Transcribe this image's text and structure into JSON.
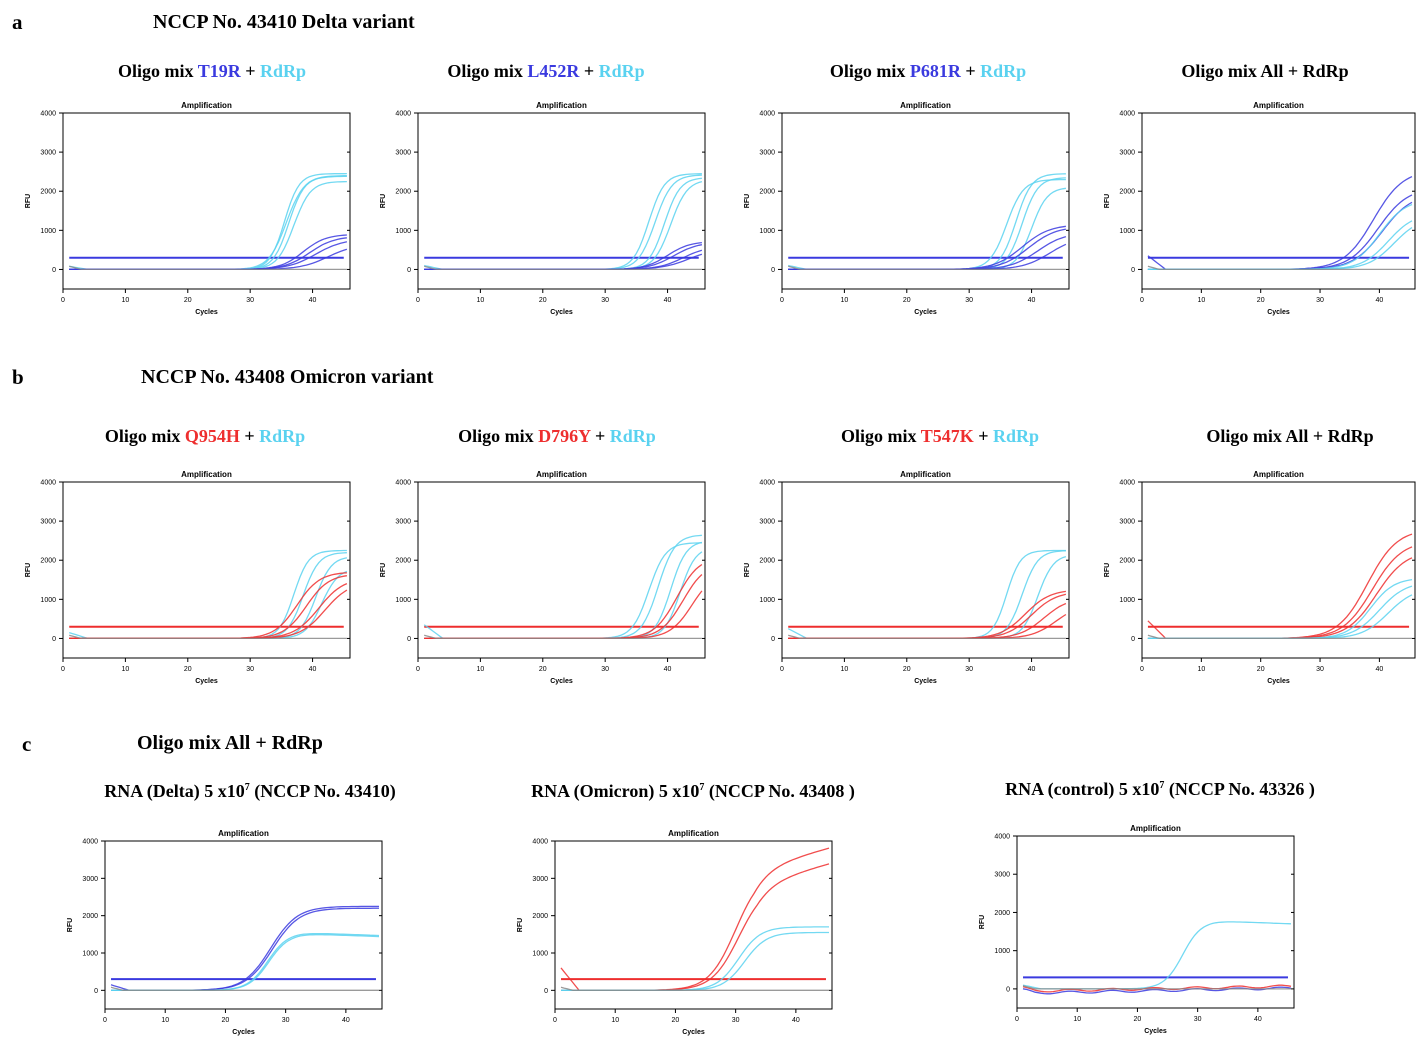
{
  "colors": {
    "cyan": "#5ad2f0",
    "blue": "#3a3adf",
    "red": "#ee2e2e",
    "gray": "#888888",
    "black": "#000000"
  },
  "panels": {
    "a": {
      "letter": "a",
      "title": "NCCP No. 43410 Delta variant"
    },
    "b": {
      "letter": "b",
      "title": "NCCP No. 43408 Omicron variant"
    },
    "c": {
      "letter": "c",
      "title": "Oligo mix All + RdRp"
    }
  },
  "chart_titles": [
    [
      {
        "t": "Oligo mix ",
        "c": "black"
      },
      {
        "t": "T19R",
        "c": "blue"
      },
      {
        "t": " + ",
        "c": "black"
      },
      {
        "t": "RdRp",
        "c": "cyan"
      }
    ],
    [
      {
        "t": "Oligo mix ",
        "c": "black"
      },
      {
        "t": "L452R",
        "c": "blue"
      },
      {
        "t": " + ",
        "c": "black"
      },
      {
        "t": "RdRp",
        "c": "cyan"
      }
    ],
    [
      {
        "t": "Oligo mix ",
        "c": "black"
      },
      {
        "t": "P681R",
        "c": "blue"
      },
      {
        "t": " + ",
        "c": "black"
      },
      {
        "t": "RdRp",
        "c": "cyan"
      }
    ],
    [
      {
        "t": "Oligo mix All + RdRp",
        "c": "black"
      }
    ],
    [
      {
        "t": "Oligo mix ",
        "c": "black"
      },
      {
        "t": "Q954H",
        "c": "red"
      },
      {
        "t": " + ",
        "c": "black"
      },
      {
        "t": "RdRp",
        "c": "cyan"
      }
    ],
    [
      {
        "t": "Oligo mix ",
        "c": "black"
      },
      {
        "t": "D796Y",
        "c": "red"
      },
      {
        "t": " + ",
        "c": "black"
      },
      {
        "t": "RdRp",
        "c": "cyan"
      }
    ],
    [
      {
        "t": "Oligo mix ",
        "c": "black"
      },
      {
        "t": "T547K",
        "c": "red"
      },
      {
        "t": " + ",
        "c": "black"
      },
      {
        "t": "RdRp",
        "c": "cyan"
      }
    ],
    [
      {
        "t": "Oligo mix All + RdRp",
        "c": "black"
      }
    ]
  ],
  "rna_titles": [
    {
      "pre": "RNA (Delta) 5 x10",
      "sup": "7",
      "post": " (NCCP No. 43410)"
    },
    {
      "pre": "RNA (Omicron) 5 x10",
      "sup": "7",
      "post": " (NCCP No. 43408 )"
    },
    {
      "pre": "RNA (control) 5 x10",
      "sup": "7",
      "post": " (NCCP No. 43326 )"
    }
  ],
  "chart_data": [
    {
      "type": "line",
      "title": "Amplification",
      "xlabel": "Cycles",
      "ylabel": "RFU",
      "xlim": [
        0,
        46
      ],
      "ylim": [
        -500,
        4000
      ],
      "xticks": [
        0,
        10,
        20,
        30,
        40
      ],
      "yticks": [
        0,
        1000,
        2000,
        3000,
        4000
      ],
      "threshold": 300,
      "threshold_color": "blue",
      "series": [
        {
          "color": "cyan",
          "mid": 35.5,
          "k": 0.85,
          "plateau": 2450,
          "start": 80
        },
        {
          "color": "cyan",
          "mid": 36.2,
          "k": 0.8,
          "plateau": 2380
        },
        {
          "color": "cyan",
          "mid": 37.0,
          "k": 0.75,
          "plateau": 2250
        },
        {
          "color": "cyan",
          "mid": 35.8,
          "k": 0.7,
          "plateau": 2400
        },
        {
          "color": "blue",
          "mid": 38.5,
          "k": 0.55,
          "plateau": 900
        },
        {
          "color": "blue",
          "mid": 39.5,
          "k": 0.5,
          "plateau": 850
        },
        {
          "color": "blue",
          "mid": 40.5,
          "k": 0.45,
          "plateau": 780
        },
        {
          "color": "blue",
          "mid": 42.5,
          "k": 0.45,
          "plateau": 650
        },
        {
          "color": "gray",
          "flat": 0
        }
      ]
    },
    {
      "type": "line",
      "title": "Amplification",
      "xlabel": "Cycles",
      "ylabel": "RFU",
      "xlim": [
        0,
        46
      ],
      "ylim": [
        -500,
        4000
      ],
      "xticks": [
        0,
        10,
        20,
        30,
        40
      ],
      "yticks": [
        0,
        1000,
        2000,
        3000,
        4000
      ],
      "threshold": 300,
      "threshold_color": "blue",
      "series": [
        {
          "color": "cyan",
          "mid": 37.0,
          "k": 0.8,
          "plateau": 2450,
          "start": 100
        },
        {
          "color": "cyan",
          "mid": 38.0,
          "k": 0.75,
          "plateau": 2420
        },
        {
          "color": "cyan",
          "mid": 39.5,
          "k": 0.8,
          "plateau": 2350
        },
        {
          "color": "cyan",
          "mid": 40.5,
          "k": 0.75,
          "plateau": 2300
        },
        {
          "color": "blue",
          "mid": 40.0,
          "k": 0.55,
          "plateau": 720
        },
        {
          "color": "blue",
          "mid": 41.0,
          "k": 0.5,
          "plateau": 700
        },
        {
          "color": "blue",
          "mid": 42.5,
          "k": 0.5,
          "plateau": 600
        },
        {
          "color": "blue",
          "mid": 43.5,
          "k": 0.45,
          "plateau": 550
        },
        {
          "color": "gray",
          "flat": 0
        }
      ]
    },
    {
      "type": "line",
      "title": "Amplification",
      "xlabel": "Cycles",
      "ylabel": "RFU",
      "xlim": [
        0,
        46
      ],
      "ylim": [
        -500,
        4000
      ],
      "xticks": [
        0,
        10,
        20,
        30,
        40
      ],
      "yticks": [
        0,
        1000,
        2000,
        3000,
        4000
      ],
      "threshold": 300,
      "threshold_color": "blue",
      "series": [
        {
          "color": "cyan",
          "mid": 36.0,
          "k": 0.75,
          "plateau": 2300,
          "start": 100
        },
        {
          "color": "cyan",
          "mid": 37.5,
          "k": 0.8,
          "plateau": 2450
        },
        {
          "color": "cyan",
          "mid": 38.5,
          "k": 0.8,
          "plateau": 2350
        },
        {
          "color": "cyan",
          "mid": 40.0,
          "k": 0.8,
          "plateau": 2100
        },
        {
          "color": "blue",
          "mid": 38.5,
          "k": 0.45,
          "plateau": 1150
        },
        {
          "color": "blue",
          "mid": 39.5,
          "k": 0.45,
          "plateau": 1100
        },
        {
          "color": "blue",
          "mid": 41.0,
          "k": 0.45,
          "plateau": 950
        },
        {
          "color": "blue",
          "mid": 43.0,
          "k": 0.45,
          "plateau": 850
        },
        {
          "color": "gray",
          "flat": 0
        }
      ]
    },
    {
      "type": "line",
      "title": "Amplification",
      "xlabel": "Cycles",
      "ylabel": "RFU",
      "xlim": [
        0,
        46
      ],
      "ylim": [
        -500,
        4000
      ],
      "xticks": [
        0,
        10,
        20,
        30,
        40
      ],
      "yticks": [
        0,
        1000,
        2000,
        3000,
        4000
      ],
      "threshold": 300,
      "threshold_color": "blue",
      "series": [
        {
          "color": "blue",
          "mid": 39.0,
          "k": 0.4,
          "plateau": 2550,
          "start": 350
        },
        {
          "color": "blue",
          "mid": 39.8,
          "k": 0.4,
          "plateau": 2100
        },
        {
          "color": "blue",
          "mid": 40.5,
          "k": 0.4,
          "plateau": 1950
        },
        {
          "color": "cyan",
          "mid": 40.0,
          "k": 0.45,
          "plateau": 1800
        },
        {
          "color": "cyan",
          "mid": 41.5,
          "k": 0.45,
          "plateau": 1450
        },
        {
          "color": "cyan",
          "mid": 42.5,
          "k": 0.45,
          "plateau": 1350
        },
        {
          "color": "gray",
          "flat": 0
        }
      ]
    },
    {
      "type": "line",
      "title": "Amplification",
      "xlabel": "Cycles",
      "ylabel": "RFU",
      "xlim": [
        0,
        46
      ],
      "ylim": [
        -500,
        4000
      ],
      "xticks": [
        0,
        10,
        20,
        30,
        40
      ],
      "yticks": [
        0,
        1000,
        2000,
        3000,
        4000
      ],
      "threshold": 300,
      "threshold_color": "red",
      "series": [
        {
          "color": "cyan",
          "mid": 37.0,
          "k": 0.85,
          "plateau": 2250,
          "start": 150
        },
        {
          "color": "cyan",
          "mid": 38.5,
          "k": 0.8,
          "plateau": 2200
        },
        {
          "color": "cyan",
          "mid": 40.5,
          "k": 0.8,
          "plateau": 2100
        },
        {
          "color": "cyan",
          "mid": 41.5,
          "k": 0.75,
          "plateau": 1800
        },
        {
          "color": "red",
          "mid": 37.5,
          "k": 0.55,
          "plateau": 1700
        },
        {
          "color": "red",
          "mid": 39.0,
          "k": 0.55,
          "plateau": 1650
        },
        {
          "color": "red",
          "mid": 41.0,
          "k": 0.5,
          "plateau": 1550
        },
        {
          "color": "red",
          "mid": 42.0,
          "k": 0.5,
          "plateau": 1450
        },
        {
          "color": "gray",
          "flat": 0
        }
      ]
    },
    {
      "type": "line",
      "title": "Amplification",
      "xlabel": "Cycles",
      "ylabel": "RFU",
      "xlim": [
        0,
        46
      ],
      "ylim": [
        -500,
        4000
      ],
      "xticks": [
        0,
        10,
        20,
        30,
        40
      ],
      "yticks": [
        0,
        1000,
        2000,
        3000,
        4000
      ],
      "threshold": 300,
      "threshold_color": "red",
      "series": [
        {
          "color": "cyan",
          "mid": 37.0,
          "k": 0.75,
          "plateau": 2450,
          "start": 350
        },
        {
          "color": "cyan",
          "mid": 38.5,
          "k": 0.75,
          "plateau": 2650
        },
        {
          "color": "cyan",
          "mid": 40.5,
          "k": 0.8,
          "plateau": 2500
        },
        {
          "color": "cyan",
          "mid": 42.0,
          "k": 0.8,
          "plateau": 2350
        },
        {
          "color": "red",
          "mid": 41.5,
          "k": 0.55,
          "plateau": 2100
        },
        {
          "color": "red",
          "mid": 42.5,
          "k": 0.55,
          "plateau": 1950
        },
        {
          "color": "red",
          "mid": 44.0,
          "k": 0.55,
          "plateau": 1750
        },
        {
          "color": "gray",
          "flat": 0
        }
      ]
    },
    {
      "type": "line",
      "title": "Amplification",
      "xlabel": "Cycles",
      "ylabel": "RFU",
      "xlim": [
        0,
        46
      ],
      "ylim": [
        -500,
        4000
      ],
      "xticks": [
        0,
        10,
        20,
        30,
        40
      ],
      "yticks": [
        0,
        1000,
        2000,
        3000,
        4000
      ],
      "threshold": 300,
      "threshold_color": "red",
      "series": [
        {
          "color": "cyan",
          "mid": 36.0,
          "k": 0.9,
          "plateau": 2250,
          "start": 250
        },
        {
          "color": "cyan",
          "mid": 38.5,
          "k": 0.8,
          "plateau": 2250
        },
        {
          "color": "cyan",
          "mid": 41.0,
          "k": 0.8,
          "plateau": 2150
        },
        {
          "color": "red",
          "mid": 39.0,
          "k": 0.5,
          "plateau": 1250
        },
        {
          "color": "red",
          "mid": 40.0,
          "k": 0.5,
          "plateau": 1200
        },
        {
          "color": "red",
          "mid": 42.0,
          "k": 0.5,
          "plateau": 1050
        },
        {
          "color": "red",
          "mid": 44.0,
          "k": 0.5,
          "plateau": 900
        },
        {
          "color": "gray",
          "flat": 0
        }
      ]
    },
    {
      "type": "line",
      "title": "Amplification",
      "xlabel": "Cycles",
      "ylabel": "RFU",
      "xlim": [
        0,
        46
      ],
      "ylim": [
        -500,
        4000
      ],
      "xticks": [
        0,
        10,
        20,
        30,
        40
      ],
      "yticks": [
        0,
        1000,
        2000,
        3000,
        4000
      ],
      "threshold": 300,
      "threshold_color": "red",
      "series": [
        {
          "color": "red",
          "mid": 38.0,
          "k": 0.4,
          "plateau": 2800,
          "start": 450
        },
        {
          "color": "red",
          "mid": 38.8,
          "k": 0.4,
          "plateau": 2500
        },
        {
          "color": "red",
          "mid": 39.5,
          "k": 0.4,
          "plateau": 2250
        },
        {
          "color": "cyan",
          "mid": 38.5,
          "k": 0.5,
          "plateau": 1550
        },
        {
          "color": "cyan",
          "mid": 40.0,
          "k": 0.45,
          "plateau": 1450
        },
        {
          "color": "cyan",
          "mid": 41.5,
          "k": 0.45,
          "plateau": 1300
        },
        {
          "color": "gray",
          "flat": 0
        }
      ]
    },
    {
      "type": "line",
      "title": "Amplification",
      "xlabel": "Cycles",
      "ylabel": "RFU",
      "xlim": [
        0,
        46
      ],
      "ylim": [
        -500,
        4000
      ],
      "xticks": [
        0,
        10,
        20,
        30,
        40
      ],
      "yticks": [
        0,
        1000,
        2000,
        3000,
        4000
      ],
      "threshold": 300,
      "threshold_color": "blue",
      "series": [
        {
          "color": "blue",
          "mid": 27.5,
          "k": 0.45,
          "plateau": 2250,
          "start": 150
        },
        {
          "color": "blue",
          "mid": 27.8,
          "k": 0.45,
          "plateau": 2200
        },
        {
          "color": "cyan",
          "mid": 27.0,
          "k": 0.6,
          "plateau": 1550,
          "hump": 1
        },
        {
          "color": "cyan",
          "mid": 27.2,
          "k": 0.6,
          "plateau": 1520,
          "hump": 1
        },
        {
          "color": "gray",
          "flat": 0
        }
      ]
    },
    {
      "type": "line",
      "title": "Amplification",
      "xlabel": "Cycles",
      "ylabel": "RFU",
      "xlim": [
        0,
        46
      ],
      "ylim": [
        -500,
        4000
      ],
      "xticks": [
        0,
        10,
        20,
        30,
        40
      ],
      "yticks": [
        0,
        1000,
        2000,
        3000,
        4000
      ],
      "threshold": 300,
      "threshold_color": "red",
      "series": [
        {
          "color": "red",
          "mid": 30.0,
          "k": 0.45,
          "plateau": 3250,
          "start": 600,
          "rise": 1
        },
        {
          "color": "red",
          "mid": 30.5,
          "k": 0.45,
          "plateau": 2850,
          "rise": 1
        },
        {
          "color": "cyan",
          "mid": 30.5,
          "k": 0.55,
          "plateau": 1700
        },
        {
          "color": "cyan",
          "mid": 31.5,
          "k": 0.55,
          "plateau": 1550
        },
        {
          "color": "gray",
          "flat": 0
        }
      ]
    },
    {
      "type": "line",
      "title": "Amplification",
      "xlabel": "Cycles",
      "ylabel": "RFU",
      "xlim": [
        0,
        46
      ],
      "ylim": [
        -500,
        4000
      ],
      "xticks": [
        0,
        10,
        20,
        30,
        40
      ],
      "yticks": [
        0,
        1000,
        2000,
        3000,
        4000
      ],
      "threshold": 300,
      "threshold_color": "blue",
      "series": [
        {
          "color": "cyan",
          "mid": 27.5,
          "k": 0.65,
          "plateau": 1780,
          "hump": 1,
          "start": 100
        },
        {
          "color": "blue",
          "flat": -100,
          "drift": 1
        },
        {
          "color": "red",
          "flat": -50,
          "drift": 1
        },
        {
          "color": "gray",
          "flat": 0
        }
      ]
    }
  ]
}
